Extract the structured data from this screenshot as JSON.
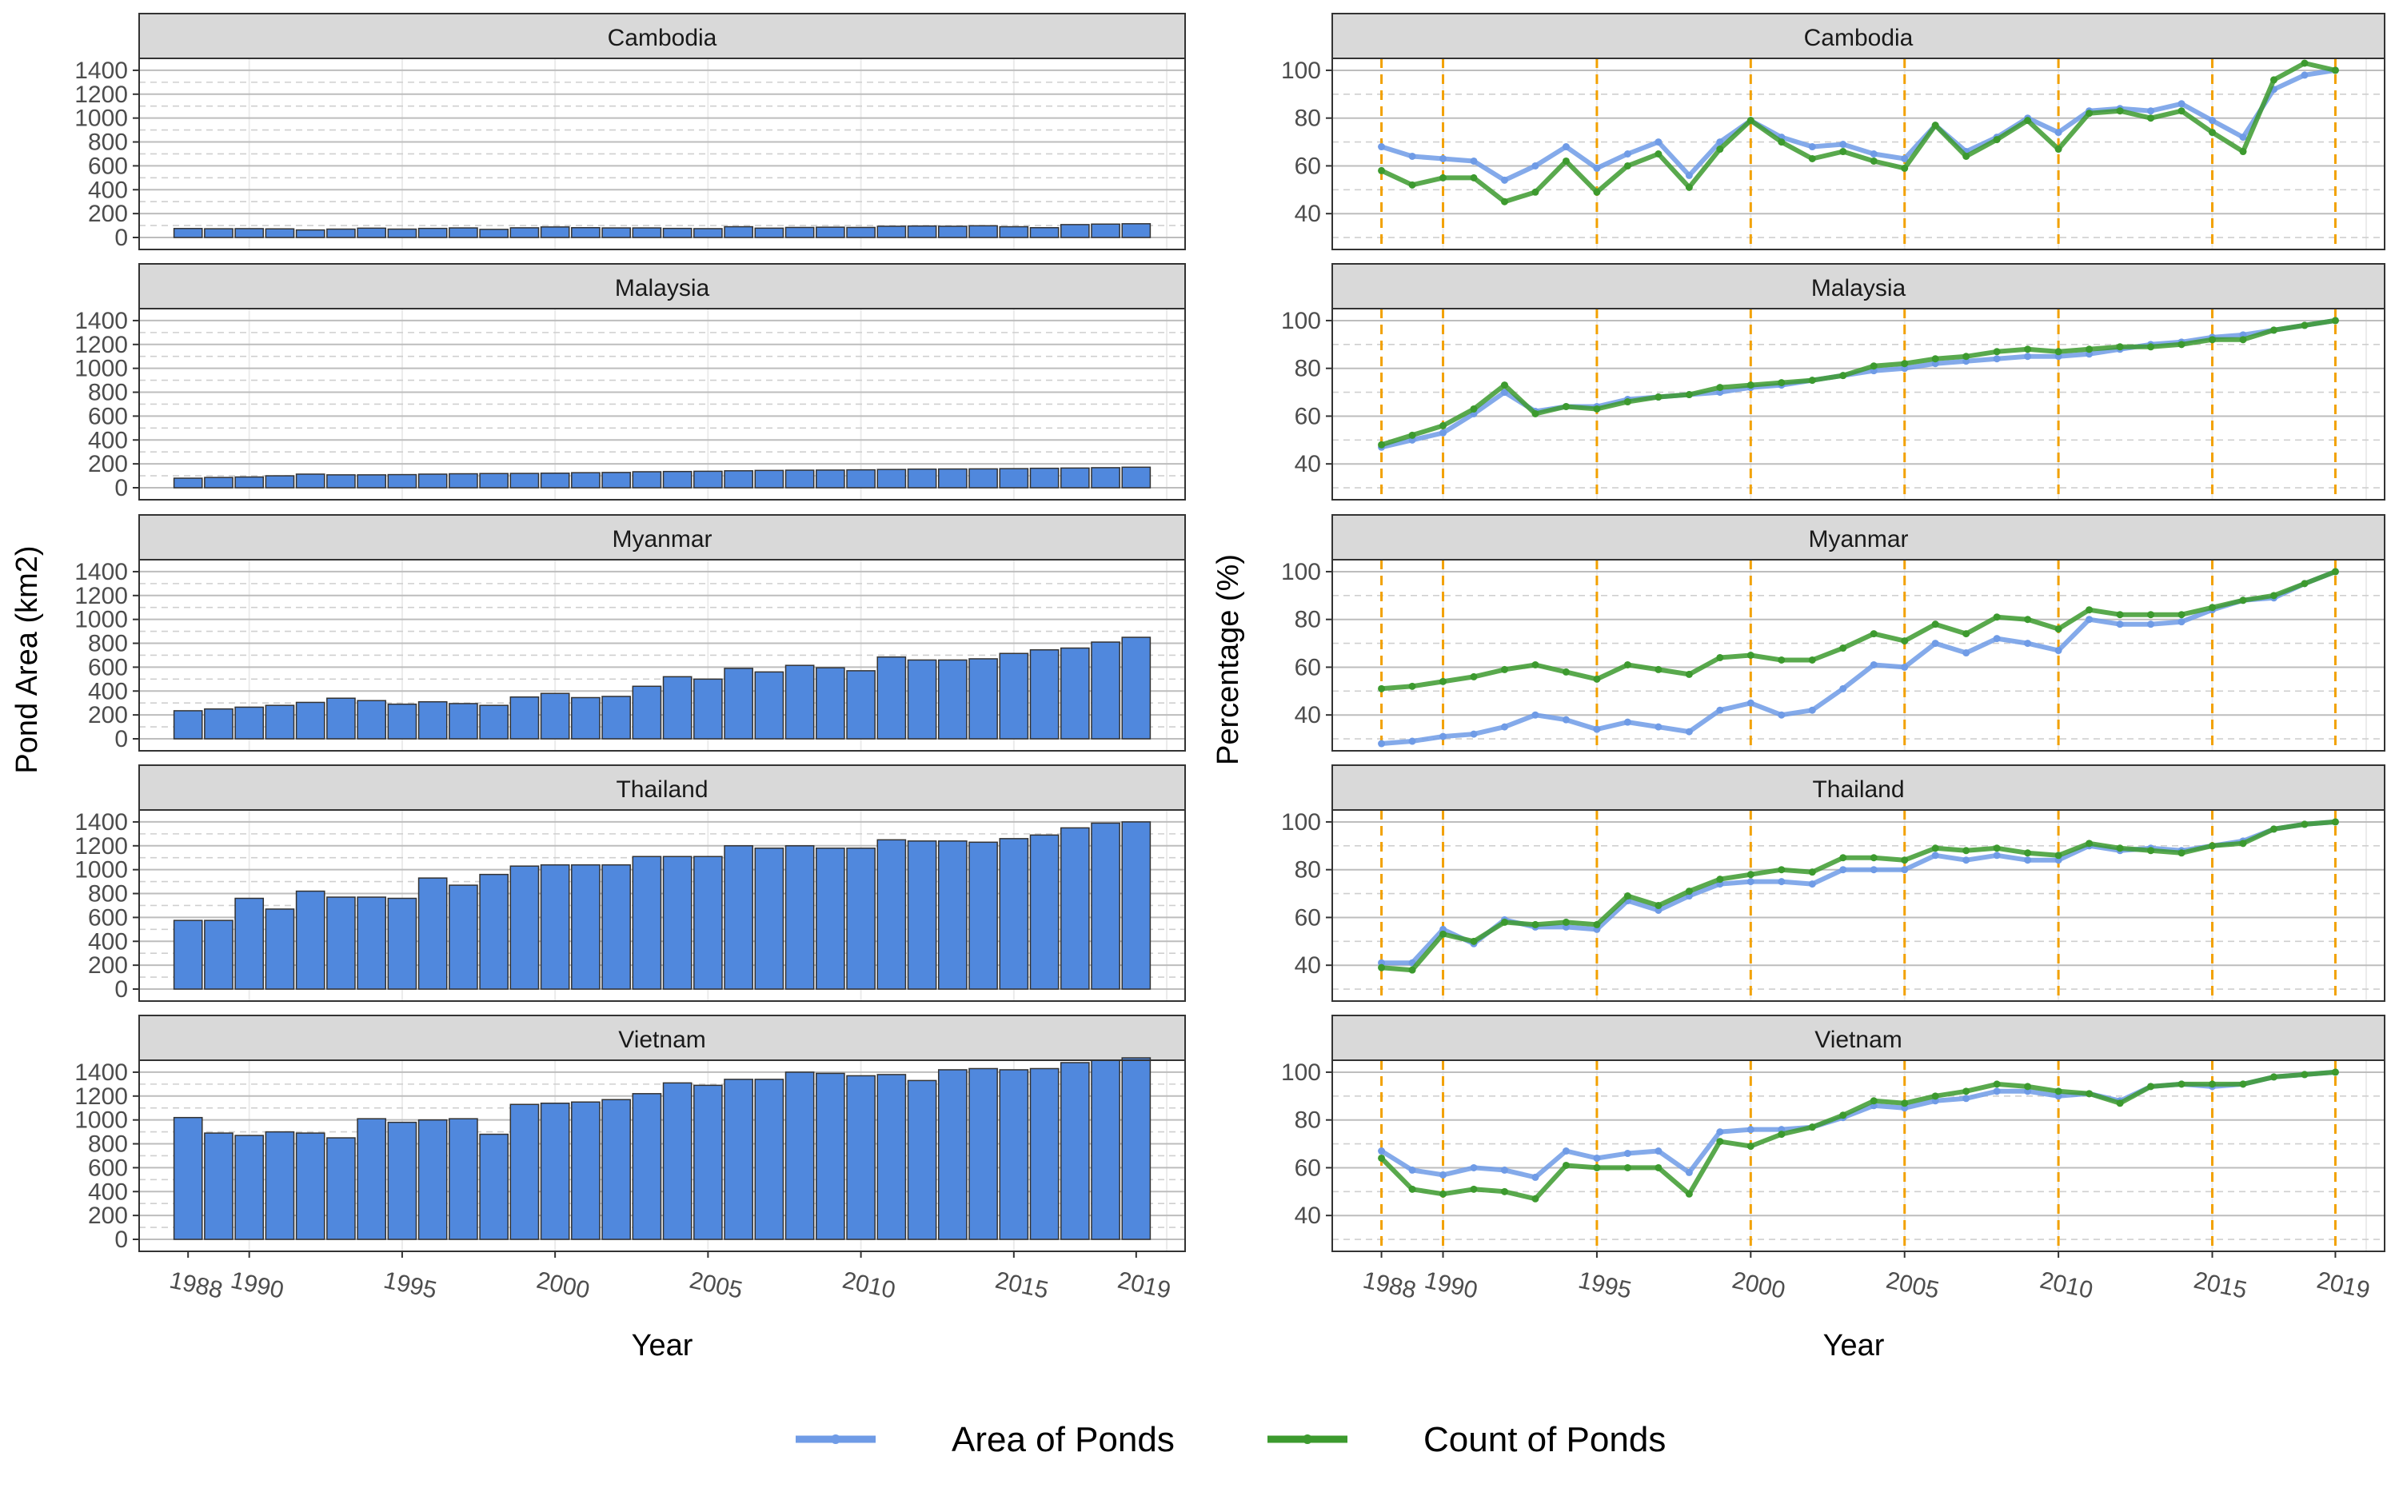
{
  "figure": {
    "left_ylabel": "Pond Area (km2)",
    "right_ylabel": "Percentage (%)",
    "xlabel": "Year",
    "x_ticks": [
      1988,
      1990,
      1995,
      2000,
      2005,
      2010,
      2015,
      2019
    ],
    "left_y_ticks": [
      0,
      200,
      400,
      600,
      800,
      1000,
      1200,
      1400
    ],
    "right_y_ticks": [
      40,
      60,
      80,
      100
    ],
    "vline_years": [
      1988,
      1990,
      1995,
      2000,
      2005,
      2010,
      2015,
      2019
    ],
    "legend": [
      {
        "label": "Area of Ponds",
        "color": "#6f9be6"
      },
      {
        "label": "Count of Ponds",
        "color": "#3c9a2e"
      }
    ],
    "colors": {
      "bar_fill": "#5088dd",
      "area_line": "#6f9be6",
      "count_line": "#3c9a2e",
      "vline": "#f2a100",
      "strip_bg": "#d9d9d9"
    }
  },
  "chart_data": [
    {
      "type": "bar",
      "panel": "Cambodia",
      "title": "Cambodia",
      "xlabel": "Year",
      "ylabel": "Pond Area (km2)",
      "ylim": [
        0,
        1500
      ],
      "x": [
        1988,
        1989,
        1990,
        1991,
        1992,
        1993,
        1994,
        1995,
        1996,
        1997,
        1998,
        1999,
        2000,
        2001,
        2002,
        2003,
        2004,
        2005,
        2006,
        2007,
        2008,
        2009,
        2010,
        2011,
        2012,
        2013,
        2014,
        2015,
        2016,
        2017,
        2018,
        2019
      ],
      "values": [
        75,
        73,
        74,
        72,
        63,
        70,
        78,
        70,
        76,
        80,
        68,
        81,
        88,
        82,
        80,
        80,
        76,
        74,
        90,
        78,
        84,
        86,
        84,
        94,
        96,
        94,
        98,
        90,
        82,
        108,
        112,
        115
      ]
    },
    {
      "type": "line",
      "panel": "Cambodia",
      "title": "Cambodia",
      "xlabel": "Year",
      "ylabel": "Percentage (%)",
      "ylim": [
        25,
        105
      ],
      "x": [
        1988,
        1989,
        1990,
        1991,
        1992,
        1993,
        1994,
        1995,
        1996,
        1997,
        1998,
        1999,
        2000,
        2001,
        2002,
        2003,
        2004,
        2005,
        2006,
        2007,
        2008,
        2009,
        2010,
        2011,
        2012,
        2013,
        2014,
        2015,
        2016,
        2017,
        2018,
        2019
      ],
      "series": [
        {
          "name": "Area of Ponds",
          "values": [
            68,
            64,
            63,
            62,
            54,
            60,
            68,
            59,
            65,
            70,
            56,
            70,
            79,
            72,
            68,
            69,
            65,
            63,
            77,
            66,
            72,
            80,
            74,
            83,
            84,
            83,
            86,
            79,
            72,
            92,
            98,
            100
          ]
        },
        {
          "name": "Count of Ponds",
          "values": [
            58,
            52,
            55,
            55,
            45,
            49,
            62,
            49,
            60,
            65,
            51,
            67,
            79,
            70,
            63,
            66,
            62,
            59,
            77,
            64,
            71,
            79,
            67,
            82,
            83,
            80,
            83,
            74,
            66,
            96,
            103,
            100
          ]
        }
      ]
    },
    {
      "type": "bar",
      "panel": "Malaysia",
      "title": "Malaysia",
      "xlabel": "Year",
      "ylabel": "Pond Area (km2)",
      "ylim": [
        0,
        1500
      ],
      "x": [
        1988,
        1989,
        1990,
        1991,
        1992,
        1993,
        1994,
        1995,
        1996,
        1997,
        1998,
        1999,
        2000,
        2001,
        2002,
        2003,
        2004,
        2005,
        2006,
        2007,
        2008,
        2009,
        2010,
        2011,
        2012,
        2013,
        2014,
        2015,
        2016,
        2017,
        2018,
        2019
      ],
      "values": [
        80,
        86,
        90,
        100,
        114,
        108,
        108,
        110,
        114,
        117,
        119,
        120,
        122,
        126,
        128,
        134,
        136,
        138,
        142,
        145,
        147,
        148,
        150,
        153,
        156,
        157,
        158,
        160,
        163,
        165,
        168,
        172
      ]
    },
    {
      "type": "line",
      "panel": "Malaysia",
      "title": "Malaysia",
      "xlabel": "Year",
      "ylabel": "Percentage (%)",
      "ylim": [
        25,
        105
      ],
      "x": [
        1988,
        1989,
        1990,
        1991,
        1992,
        1993,
        1994,
        1995,
        1996,
        1997,
        1998,
        1999,
        2000,
        2001,
        2002,
        2003,
        2004,
        2005,
        2006,
        2007,
        2008,
        2009,
        2010,
        2011,
        2012,
        2013,
        2014,
        2015,
        2016,
        2017,
        2018,
        2019
      ],
      "series": [
        {
          "name": "Area of Ponds",
          "values": [
            47,
            50,
            53,
            61,
            70,
            62,
            64,
            64,
            67,
            68,
            69,
            70,
            72,
            73,
            75,
            77,
            79,
            80,
            82,
            83,
            84,
            85,
            85,
            86,
            88,
            90,
            91,
            93,
            94,
            96,
            98,
            100
          ]
        },
        {
          "name": "Count of Ponds",
          "values": [
            48,
            52,
            56,
            63,
            73,
            61,
            64,
            63,
            66,
            68,
            69,
            72,
            73,
            74,
            75,
            77,
            81,
            82,
            84,
            85,
            87,
            88,
            87,
            88,
            89,
            89,
            90,
            92,
            92,
            96,
            98,
            100
          ]
        }
      ]
    },
    {
      "type": "bar",
      "panel": "Myanmar",
      "title": "Myanmar",
      "xlabel": "Year",
      "ylabel": "Pond Area (km2)",
      "ylim": [
        0,
        1500
      ],
      "x": [
        1988,
        1989,
        1990,
        1991,
        1992,
        1993,
        1994,
        1995,
        1996,
        1997,
        1998,
        1999,
        2000,
        2001,
        2002,
        2003,
        2004,
        2005,
        2006,
        2007,
        2008,
        2009,
        2010,
        2011,
        2012,
        2013,
        2014,
        2015,
        2016,
        2017,
        2018,
        2019
      ],
      "values": [
        235,
        250,
        265,
        280,
        305,
        340,
        320,
        290,
        310,
        295,
        280,
        350,
        380,
        345,
        355,
        440,
        520,
        500,
        590,
        560,
        615,
        595,
        570,
        685,
        660,
        660,
        670,
        715,
        745,
        760,
        810,
        850
      ]
    },
    {
      "type": "line",
      "panel": "Myanmar",
      "title": "Myanmar",
      "xlabel": "Year",
      "ylabel": "Percentage (%)",
      "ylim": [
        25,
        105
      ],
      "x": [
        1988,
        1989,
        1990,
        1991,
        1992,
        1993,
        1994,
        1995,
        1996,
        1997,
        1998,
        1999,
        2000,
        2001,
        2002,
        2003,
        2004,
        2005,
        2006,
        2007,
        2008,
        2009,
        2010,
        2011,
        2012,
        2013,
        2014,
        2015,
        2016,
        2017,
        2018,
        2019
      ],
      "series": [
        {
          "name": "Area of Ponds",
          "values": [
            28,
            29,
            31,
            32,
            35,
            40,
            38,
            34,
            37,
            35,
            33,
            42,
            45,
            40,
            42,
            51,
            61,
            60,
            70,
            66,
            72,
            70,
            67,
            80,
            78,
            78,
            79,
            84,
            88,
            89,
            95,
            100
          ]
        },
        {
          "name": "Count of Ponds",
          "values": [
            51,
            52,
            54,
            56,
            59,
            61,
            58,
            55,
            61,
            59,
            57,
            64,
            65,
            63,
            63,
            68,
            74,
            71,
            78,
            74,
            81,
            80,
            76,
            84,
            82,
            82,
            82,
            85,
            88,
            90,
            95,
            100
          ]
        }
      ]
    },
    {
      "type": "bar",
      "panel": "Thailand",
      "title": "Thailand",
      "xlabel": "Year",
      "ylabel": "Pond Area (km2)",
      "ylim": [
        0,
        1500
      ],
      "x": [
        1988,
        1989,
        1990,
        1991,
        1992,
        1993,
        1994,
        1995,
        1996,
        1997,
        1998,
        1999,
        2000,
        2001,
        2002,
        2003,
        2004,
        2005,
        2006,
        2007,
        2008,
        2009,
        2010,
        2011,
        2012,
        2013,
        2014,
        2015,
        2016,
        2017,
        2018,
        2019
      ],
      "values": [
        575,
        575,
        760,
        670,
        820,
        770,
        770,
        760,
        930,
        870,
        960,
        1030,
        1040,
        1040,
        1040,
        1110,
        1110,
        1110,
        1200,
        1180,
        1200,
        1180,
        1180,
        1250,
        1240,
        1240,
        1230,
        1260,
        1290,
        1350,
        1390,
        1400
      ]
    },
    {
      "type": "line",
      "panel": "Thailand",
      "title": "Thailand",
      "xlabel": "Year",
      "ylabel": "Percentage (%)",
      "ylim": [
        25,
        105
      ],
      "x": [
        1988,
        1989,
        1990,
        1991,
        1992,
        1993,
        1994,
        1995,
        1996,
        1997,
        1998,
        1999,
        2000,
        2001,
        2002,
        2003,
        2004,
        2005,
        2006,
        2007,
        2008,
        2009,
        2010,
        2011,
        2012,
        2013,
        2014,
        2015,
        2016,
        2017,
        2018,
        2019
      ],
      "series": [
        {
          "name": "Area of Ponds",
          "values": [
            41,
            41,
            55,
            49,
            59,
            56,
            56,
            55,
            67,
            63,
            69,
            74,
            75,
            75,
            74,
            80,
            80,
            80,
            86,
            84,
            86,
            84,
            84,
            90,
            88,
            89,
            88,
            90,
            92,
            97,
            99,
            100
          ]
        },
        {
          "name": "Count of Ponds",
          "values": [
            39,
            38,
            53,
            50,
            58,
            57,
            58,
            57,
            69,
            65,
            71,
            76,
            78,
            80,
            79,
            85,
            85,
            84,
            89,
            88,
            89,
            87,
            86,
            91,
            89,
            88,
            87,
            90,
            91,
            97,
            99,
            100
          ]
        }
      ]
    },
    {
      "type": "bar",
      "panel": "Vietnam",
      "title": "Vietnam",
      "xlabel": "Year",
      "ylabel": "Pond Area (km2)",
      "ylim": [
        0,
        1500
      ],
      "x": [
        1988,
        1989,
        1990,
        1991,
        1992,
        1993,
        1994,
        1995,
        1996,
        1997,
        1998,
        1999,
        2000,
        2001,
        2002,
        2003,
        2004,
        2005,
        2006,
        2007,
        2008,
        2009,
        2010,
        2011,
        2012,
        2013,
        2014,
        2015,
        2016,
        2017,
        2018,
        2019
      ],
      "values": [
        1020,
        890,
        870,
        900,
        890,
        850,
        1010,
        980,
        1000,
        1010,
        880,
        1130,
        1140,
        1150,
        1170,
        1220,
        1310,
        1290,
        1340,
        1340,
        1400,
        1390,
        1370,
        1380,
        1330,
        1420,
        1430,
        1420,
        1430,
        1480,
        1500,
        1520
      ]
    },
    {
      "type": "line",
      "panel": "Vietnam",
      "title": "Vietnam",
      "xlabel": "Year",
      "ylabel": "Percentage (%)",
      "ylim": [
        25,
        105
      ],
      "x": [
        1988,
        1989,
        1990,
        1991,
        1992,
        1993,
        1994,
        1995,
        1996,
        1997,
        1998,
        1999,
        2000,
        2001,
        2002,
        2003,
        2004,
        2005,
        2006,
        2007,
        2008,
        2009,
        2010,
        2011,
        2012,
        2013,
        2014,
        2015,
        2016,
        2017,
        2018,
        2019
      ],
      "series": [
        {
          "name": "Area of Ponds",
          "values": [
            67,
            59,
            57,
            60,
            59,
            56,
            67,
            64,
            66,
            67,
            58,
            75,
            76,
            76,
            77,
            81,
            86,
            85,
            88,
            89,
            92,
            92,
            90,
            91,
            88,
            94,
            95,
            94,
            95,
            98,
            99,
            100
          ]
        },
        {
          "name": "Count of Ponds",
          "values": [
            64,
            51,
            49,
            51,
            50,
            47,
            61,
            60,
            60,
            60,
            49,
            71,
            69,
            74,
            77,
            82,
            88,
            87,
            90,
            92,
            95,
            94,
            92,
            91,
            87,
            94,
            95,
            95,
            95,
            98,
            99,
            100
          ]
        }
      ]
    }
  ]
}
